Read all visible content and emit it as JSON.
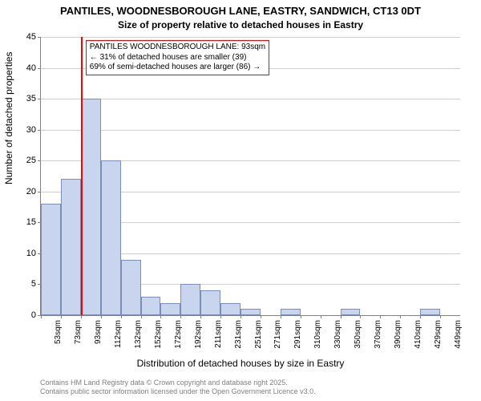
{
  "title_main": "PANTILES, WOODNESBOROUGH LANE, EASTRY, SANDWICH, CT13 0DT",
  "title_sub": "Size of property relative to detached houses in Eastry",
  "ylabel": "Number of detached properties",
  "xlabel": "Distribution of detached houses by size in Eastry",
  "footnote_line1": "Contains HM Land Registry data © Crown copyright and database right 2025.",
  "footnote_line2": "Contains public sector information licensed under the Open Government Licence v3.0.",
  "chart": {
    "type": "histogram",
    "ylim": [
      0,
      45
    ],
    "ytick_step": 5,
    "yticks": [
      0,
      5,
      10,
      15,
      20,
      25,
      30,
      35,
      40,
      45
    ],
    "categories": [
      "53sqm",
      "73sqm",
      "93sqm",
      "112sqm",
      "132sqm",
      "152sqm",
      "172sqm",
      "192sqm",
      "211sqm",
      "231sqm",
      "251sqm",
      "271sqm",
      "291sqm",
      "310sqm",
      "330sqm",
      "350sqm",
      "370sqm",
      "390sqm",
      "410sqm",
      "429sqm",
      "449sqm"
    ],
    "values": [
      18,
      22,
      35,
      25,
      9,
      3,
      2,
      5,
      4,
      2,
      1,
      0,
      1,
      0,
      0,
      1,
      0,
      0,
      0,
      1,
      0
    ],
    "bar_fill": "#c9d5ef",
    "bar_stroke": "#7a8fb3",
    "grid_color": "#d0d0d0",
    "axis_color": "#808080",
    "background_color": "#ffffff",
    "bar_width_ratio": 1.0,
    "label_fontsize": 12,
    "tick_fontsize": 11,
    "xtick_fontsize": 10
  },
  "marker": {
    "category_index": 2,
    "color": "#ff0000",
    "callout_line1": "PANTILES WOODNESBOROUGH LANE: 93sqm",
    "callout_line2": "← 31% of detached houses are smaller (39)",
    "callout_line3": "69% of semi-detached houses are larger (86) →",
    "callout_border": "#ff0000"
  }
}
